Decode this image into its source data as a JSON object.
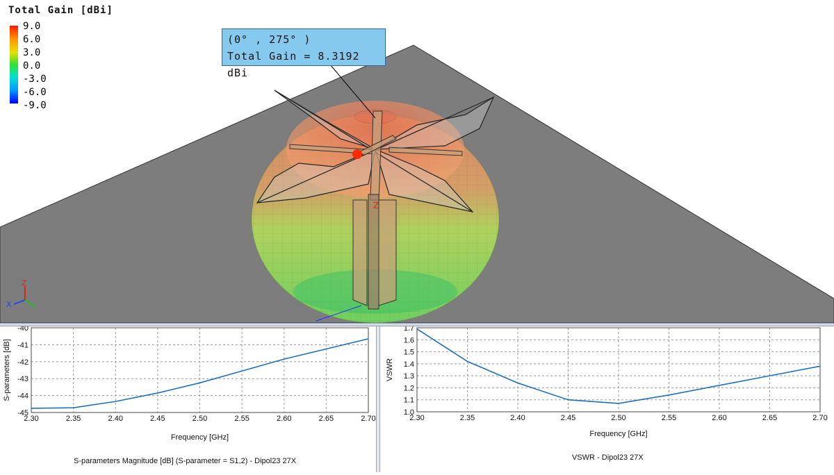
{
  "viewport": {
    "legend": {
      "title": "Total Gain [dBi]",
      "ticks": [
        "9.0",
        "6.0",
        "3.0",
        "0.0",
        "-3.0",
        "-6.0",
        "-9.0"
      ]
    },
    "tooltip": {
      "angle_text": "(0° , 275° )",
      "gain_text": "Total Gain = 8.3192 dBi"
    },
    "axis_triad": {
      "x": "X",
      "y": "Y",
      "z": "Z"
    },
    "model_axis_label": "Z",
    "colors": {
      "ground": "#7a7a7a",
      "pattern_top": "#e8885a",
      "pattern_bottom": "#78d65a",
      "marker": "#ff2a00"
    }
  },
  "charts": {
    "s_params": {
      "caption": "S-parameters Magnitude [dB] (S-parameter = S1,2) - Dipol23 27X",
      "chart_data": {
        "type": "line",
        "xlabel": "Frequency [GHz]",
        "ylabel": "S-parameters [dB]",
        "xlim": [
          2.3,
          2.7
        ],
        "ylim": [
          -45,
          -40
        ],
        "x_ticks": [
          "2.30",
          "2.35",
          "2.40",
          "2.45",
          "2.50",
          "2.55",
          "2.60",
          "2.65",
          "2.70"
        ],
        "y_ticks": [
          "-40",
          "-41",
          "-42",
          "-43",
          "-44",
          "-45"
        ],
        "grid": true,
        "x": [
          2.3,
          2.35,
          2.4,
          2.45,
          2.5,
          2.55,
          2.6,
          2.65,
          2.7
        ],
        "y": [
          -44.75,
          -44.72,
          -44.35,
          -43.85,
          -43.25,
          -42.55,
          -41.85,
          -41.25,
          -40.65
        ],
        "line_color": "#1f6fc1"
      }
    },
    "vswr": {
      "caption": "VSWR - Dipol23 27X",
      "chart_data": {
        "type": "line",
        "xlabel": "Frequency [GHz]",
        "ylabel": "VSWR",
        "xlim": [
          2.3,
          2.7
        ],
        "ylim": [
          1.0,
          1.7
        ],
        "x_ticks": [
          "2.30",
          "2.35",
          "2.40",
          "2.45",
          "2.50",
          "2.55",
          "2.60",
          "2.65",
          "2.70"
        ],
        "y_ticks": [
          "1.7",
          "1.6",
          "1.5",
          "1.4",
          "1.3",
          "1.2",
          "1.1",
          "1.0"
        ],
        "grid": true,
        "x": [
          2.3,
          2.35,
          2.4,
          2.45,
          2.5,
          2.55,
          2.6,
          2.65,
          2.7
        ],
        "y": [
          1.69,
          1.42,
          1.24,
          1.1,
          1.07,
          1.14,
          1.22,
          1.3,
          1.38
        ],
        "line_color": "#1f6fc1"
      }
    }
  }
}
